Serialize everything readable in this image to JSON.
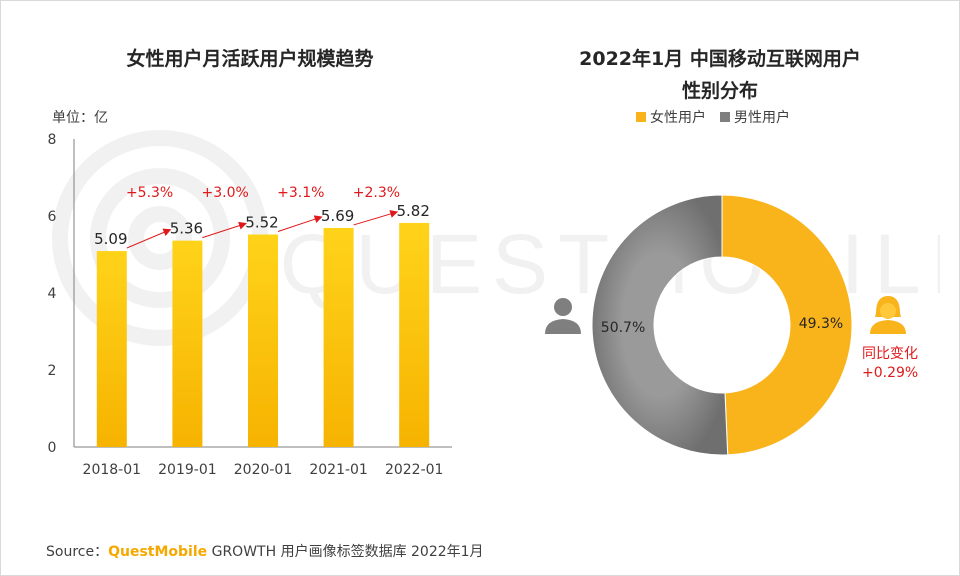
{
  "left_title": "女性用户月活跃用户规模趋势",
  "right_title_line1": "2022年1月 中国移动互联网用户",
  "right_title_line2": "性别分布",
  "unit_label": "单位：亿",
  "source": {
    "prefix": "Source：",
    "brand": "QuestMobile",
    "rest": " GROWTH 用户画像标签数据库 2022年1月"
  },
  "watermark_text": "QUESTMOBILE",
  "yoy_change": {
    "label": "同比变化",
    "value": "+0.29%"
  },
  "colors": {
    "bar_top": "#ffd31a",
    "bar_bottom": "#f6b300",
    "female": "#f9b41c",
    "male": "#7f7f7f",
    "growth_text": "#e0191b",
    "arrow": "#e0191b",
    "axis": "#7f7f7f"
  },
  "icons": {
    "male": "male-user-icon",
    "female": "female-user-icon"
  },
  "chart_data": [
    {
      "type": "bar",
      "title": "女性用户月活跃用户规模趋势",
      "ylabel": "单位：亿",
      "categories": [
        "2018-01",
        "2019-01",
        "2020-01",
        "2021-01",
        "2022-01"
      ],
      "values": [
        5.09,
        5.36,
        5.52,
        5.69,
        5.82
      ],
      "value_labels": [
        "5.09",
        "5.36",
        "5.52",
        "5.69",
        "5.82"
      ],
      "growth_labels": [
        "+5.3%",
        "+3.0%",
        "+3.1%",
        "+2.3%"
      ],
      "ylim": [
        0,
        8
      ],
      "yticks": [
        0,
        2,
        4,
        6,
        8
      ],
      "grid": false
    },
    {
      "type": "pie",
      "title": "2022年1月 中国移动互联网用户 性别分布",
      "labels": [
        "女性用户",
        "男性用户"
      ],
      "values": [
        49.3,
        50.7
      ],
      "value_labels": [
        "49.3%",
        "50.7%"
      ],
      "legend": "top"
    }
  ]
}
